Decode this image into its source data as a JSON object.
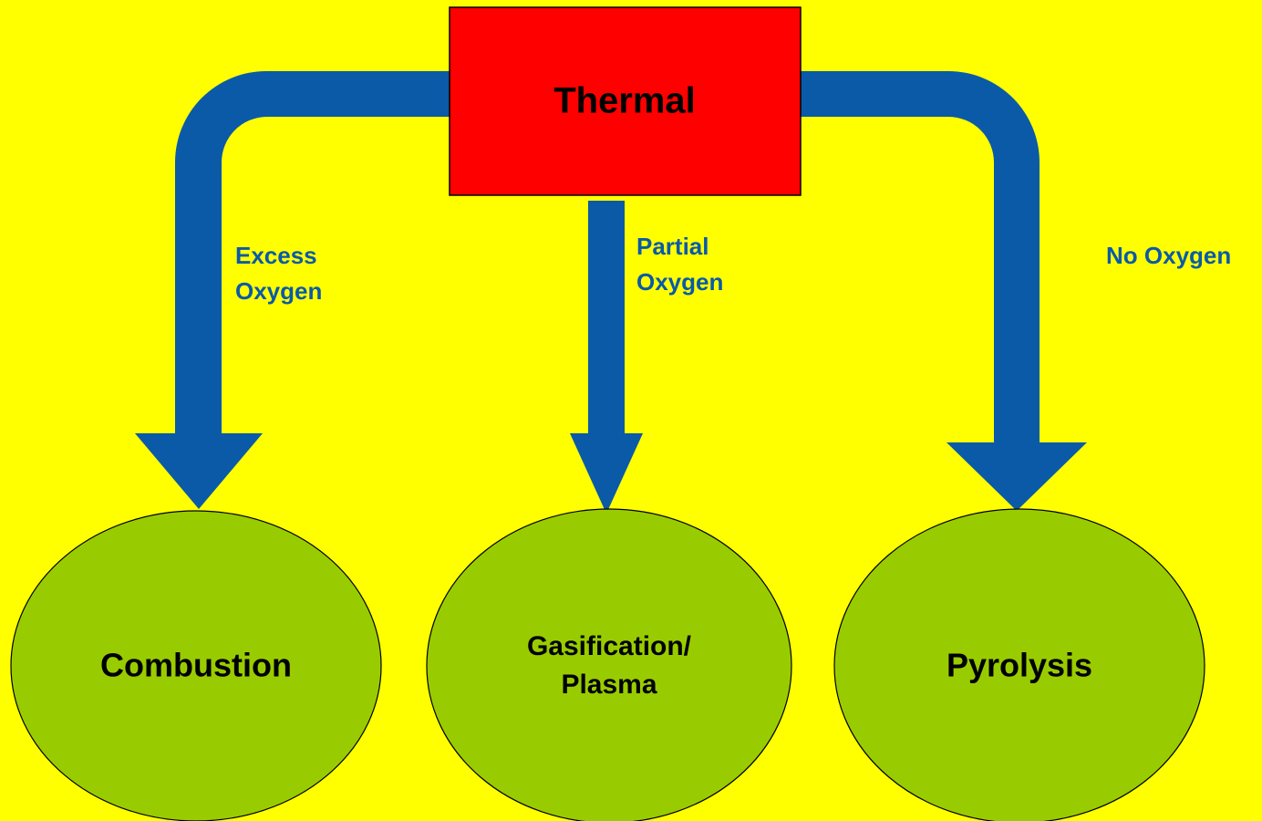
{
  "root": {
    "label": "Thermal"
  },
  "branches": [
    {
      "edge_label": [
        "Excess",
        "Oxygen"
      ],
      "node_label": [
        "Combustion"
      ]
    },
    {
      "edge_label": [
        "Partial",
        "Oxygen"
      ],
      "node_label": [
        "Gasification/",
        "Plasma"
      ]
    },
    {
      "edge_label": [
        "No Oxygen"
      ],
      "node_label": [
        "Pyrolysis"
      ]
    }
  ]
}
